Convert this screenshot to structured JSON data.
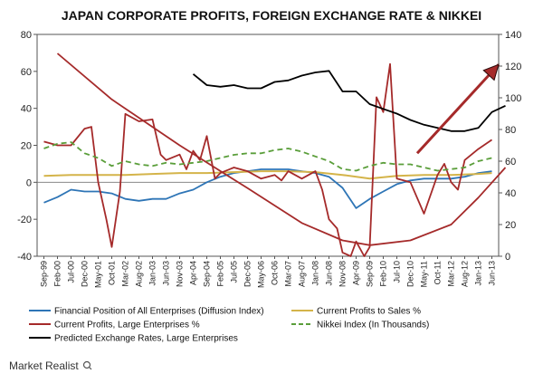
{
  "chart_data": {
    "type": "line",
    "title": "JAPAN CORPORATE PROFITS, FOREIGN EXCHANGE RATE & NIKKEI",
    "x": [
      "Sep-99",
      "Feb-00",
      "Jul-00",
      "Dec-00",
      "May-01",
      "Oct-01",
      "Mar-02",
      "Aug-02",
      "Jan-03",
      "Jun-03",
      "Nov-03",
      "Apr-04",
      "Sep-04",
      "Feb-05",
      "Jul-05",
      "Dec-05",
      "May-06",
      "Oct-06",
      "Mar-07",
      "Aug-07",
      "Jan-08",
      "Jun-08",
      "Nov-08",
      "Apr-09",
      "Sep-09",
      "Feb-10",
      "Jul-10",
      "Dec-10",
      "May-11",
      "Oct-11",
      "Mar-12",
      "Aug-12",
      "Jan-13",
      "Jun-13"
    ],
    "y_left": {
      "ylim": [
        -40,
        80
      ],
      "ticks": [
        "-40",
        "-20",
        "0",
        "20",
        "40",
        "60",
        "80"
      ]
    },
    "y_right": {
      "ylim": [
        0,
        140
      ],
      "ticks": [
        "0",
        "20",
        "40",
        "60",
        "80",
        "100",
        "120",
        "140"
      ]
    },
    "series": [
      {
        "name": "Financial Position of All Enterprises (Diffusion Index)",
        "axis": "left",
        "color": "#2E75B6",
        "dash": "solid",
        "points": [
          [
            0,
            -11
          ],
          [
            1,
            -8
          ],
          [
            2,
            -4
          ],
          [
            3,
            -5
          ],
          [
            4,
            -5
          ],
          [
            5,
            -6
          ],
          [
            6,
            -9
          ],
          [
            7,
            -10
          ],
          [
            8,
            -9
          ],
          [
            9,
            -9
          ],
          [
            10,
            -6
          ],
          [
            11,
            -4
          ],
          [
            12,
            0
          ],
          [
            13,
            3
          ],
          [
            14,
            5
          ],
          [
            15,
            6
          ],
          [
            16,
            7
          ],
          [
            17,
            7
          ],
          [
            18,
            7
          ],
          [
            19,
            6
          ],
          [
            20,
            5
          ],
          [
            21,
            3
          ],
          [
            22,
            -3
          ],
          [
            23,
            -14
          ],
          [
            24,
            -9
          ],
          [
            25,
            -5
          ],
          [
            26,
            -1
          ],
          [
            27,
            1
          ],
          [
            28,
            2
          ],
          [
            29,
            2
          ],
          [
            30,
            2
          ],
          [
            31,
            3
          ],
          [
            32,
            5
          ],
          [
            33,
            6
          ]
        ]
      },
      {
        "name": "Current Profits to Sales %",
        "axis": "left",
        "color": "#D4B44A",
        "dash": "solid",
        "points": [
          [
            0,
            3.5
          ],
          [
            2,
            4
          ],
          [
            4,
            4
          ],
          [
            6,
            4
          ],
          [
            8,
            4.5
          ],
          [
            10,
            5
          ],
          [
            12,
            5
          ],
          [
            14,
            5.5
          ],
          [
            16,
            6
          ],
          [
            18,
            6
          ],
          [
            20,
            5.5
          ],
          [
            22,
            4
          ],
          [
            24,
            2
          ],
          [
            26,
            3.5
          ],
          [
            28,
            4
          ],
          [
            30,
            4
          ],
          [
            32,
            4.5
          ],
          [
            33,
            5
          ]
        ]
      },
      {
        "name": "Current Profits, Large Enterprises %",
        "axis": "left",
        "color": "#A52A2A",
        "dash": "solid",
        "points": [
          [
            0,
            22
          ],
          [
            1,
            20
          ],
          [
            2,
            20
          ],
          [
            3,
            29
          ],
          [
            3.5,
            30
          ],
          [
            4,
            0
          ],
          [
            4.6,
            -20
          ],
          [
            5,
            -35
          ],
          [
            5.6,
            -5
          ],
          [
            6,
            37
          ],
          [
            7,
            33
          ],
          [
            8,
            34
          ],
          [
            8.6,
            15
          ],
          [
            9,
            12
          ],
          [
            10,
            15
          ],
          [
            10.5,
            7
          ],
          [
            11,
            17
          ],
          [
            11.5,
            12
          ],
          [
            12,
            25
          ],
          [
            12.6,
            2
          ],
          [
            13,
            5
          ],
          [
            14,
            8
          ],
          [
            15,
            6
          ],
          [
            16,
            2
          ],
          [
            17,
            4
          ],
          [
            17.5,
            1
          ],
          [
            18,
            6
          ],
          [
            19,
            2
          ],
          [
            20,
            6
          ],
          [
            20.5,
            -4
          ],
          [
            21,
            -20
          ],
          [
            21.6,
            -25
          ],
          [
            22,
            -38
          ],
          [
            22.6,
            -40
          ],
          [
            23,
            -32
          ],
          [
            23.6,
            -40
          ],
          [
            24,
            -35
          ],
          [
            24.5,
            46
          ],
          [
            25,
            38
          ],
          [
            25.5,
            64
          ],
          [
            26,
            2
          ],
          [
            27,
            0
          ],
          [
            28,
            -17
          ],
          [
            29,
            4
          ],
          [
            29.5,
            10
          ],
          [
            30,
            0
          ],
          [
            30.5,
            -4
          ],
          [
            31,
            12
          ],
          [
            32,
            18
          ],
          [
            33,
            23
          ]
        ]
      },
      {
        "name": "Nikkei Index (In Thousands)",
        "axis": "right",
        "color": "#5A9E3A",
        "dash": "dashed",
        "points": [
          [
            0,
            68
          ],
          [
            1,
            71
          ],
          [
            2,
            72
          ],
          [
            3,
            65
          ],
          [
            4,
            62
          ],
          [
            5,
            57
          ],
          [
            6,
            60
          ],
          [
            7,
            58
          ],
          [
            8,
            57
          ],
          [
            9,
            59
          ],
          [
            10,
            58
          ],
          [
            11,
            59
          ],
          [
            12,
            60
          ],
          [
            13,
            62
          ],
          [
            14,
            64
          ],
          [
            15,
            65
          ],
          [
            16,
            65
          ],
          [
            17,
            67
          ],
          [
            18,
            68
          ],
          [
            19,
            66
          ],
          [
            20,
            63
          ],
          [
            21,
            60
          ],
          [
            22,
            55
          ],
          [
            23,
            54
          ],
          [
            24,
            57
          ],
          [
            25,
            59
          ],
          [
            26,
            58
          ],
          [
            27,
            58
          ],
          [
            28,
            56
          ],
          [
            29,
            54
          ],
          [
            30,
            55
          ],
          [
            31,
            56
          ],
          [
            32,
            60
          ],
          [
            33,
            62
          ]
        ]
      },
      {
        "name": "Predicted Exchange Rates, Large Enterprises",
        "axis": "right",
        "color": "#000000",
        "dash": "solid",
        "points": [
          [
            11,
            115
          ],
          [
            12,
            108
          ],
          [
            13,
            107
          ],
          [
            14,
            108
          ],
          [
            15,
            106
          ],
          [
            16,
            106
          ],
          [
            17,
            110
          ],
          [
            18,
            111
          ],
          [
            19,
            114
          ],
          [
            20,
            116
          ],
          [
            21,
            117
          ],
          [
            22,
            104
          ],
          [
            23,
            104
          ],
          [
            24,
            96
          ],
          [
            25,
            93
          ],
          [
            26,
            90
          ],
          [
            27,
            86
          ],
          [
            28,
            83
          ],
          [
            29,
            81
          ],
          [
            30,
            79
          ],
          [
            31,
            79
          ],
          [
            32,
            81
          ],
          [
            33,
            91
          ],
          [
            34,
            95
          ]
        ]
      },
      {
        "name": "Trend curve (drawn)",
        "axis": "right",
        "color": "#A52A2A",
        "dash": "solid",
        "legend": false,
        "points": [
          [
            1,
            128
          ],
          [
            5,
            99
          ],
          [
            10,
            70
          ],
          [
            15,
            43
          ],
          [
            19,
            21
          ],
          [
            22,
            10
          ],
          [
            24,
            7
          ],
          [
            27,
            10
          ],
          [
            30,
            20
          ],
          [
            32,
            37
          ],
          [
            34,
            56
          ]
        ]
      }
    ],
    "arrow": {
      "axis": "right",
      "from": [
        27.5,
        65
      ],
      "to": [
        33.5,
        121
      ],
      "color": "#A52A2A"
    },
    "legend_position": "bottom",
    "grid": false
  },
  "legend_items": [
    {
      "label": "Financial Position of All Enterprises (Diffusion Index)",
      "color": "#2E75B6",
      "dash": "solid"
    },
    {
      "label": "Current Profits to Sales %",
      "color": "#D4B44A",
      "dash": "solid"
    },
    {
      "label": "Current Profits, Large Enterprises %",
      "color": "#A52A2A",
      "dash": "solid"
    },
    {
      "label": "Nikkei Index (In Thousands)",
      "color": "#5A9E3A",
      "dash": "dashed"
    },
    {
      "label": "Predicted Exchange Rates, Large Enterprises",
      "color": "#000000",
      "dash": "solid"
    }
  ],
  "branding": {
    "text": "Market Realist"
  }
}
